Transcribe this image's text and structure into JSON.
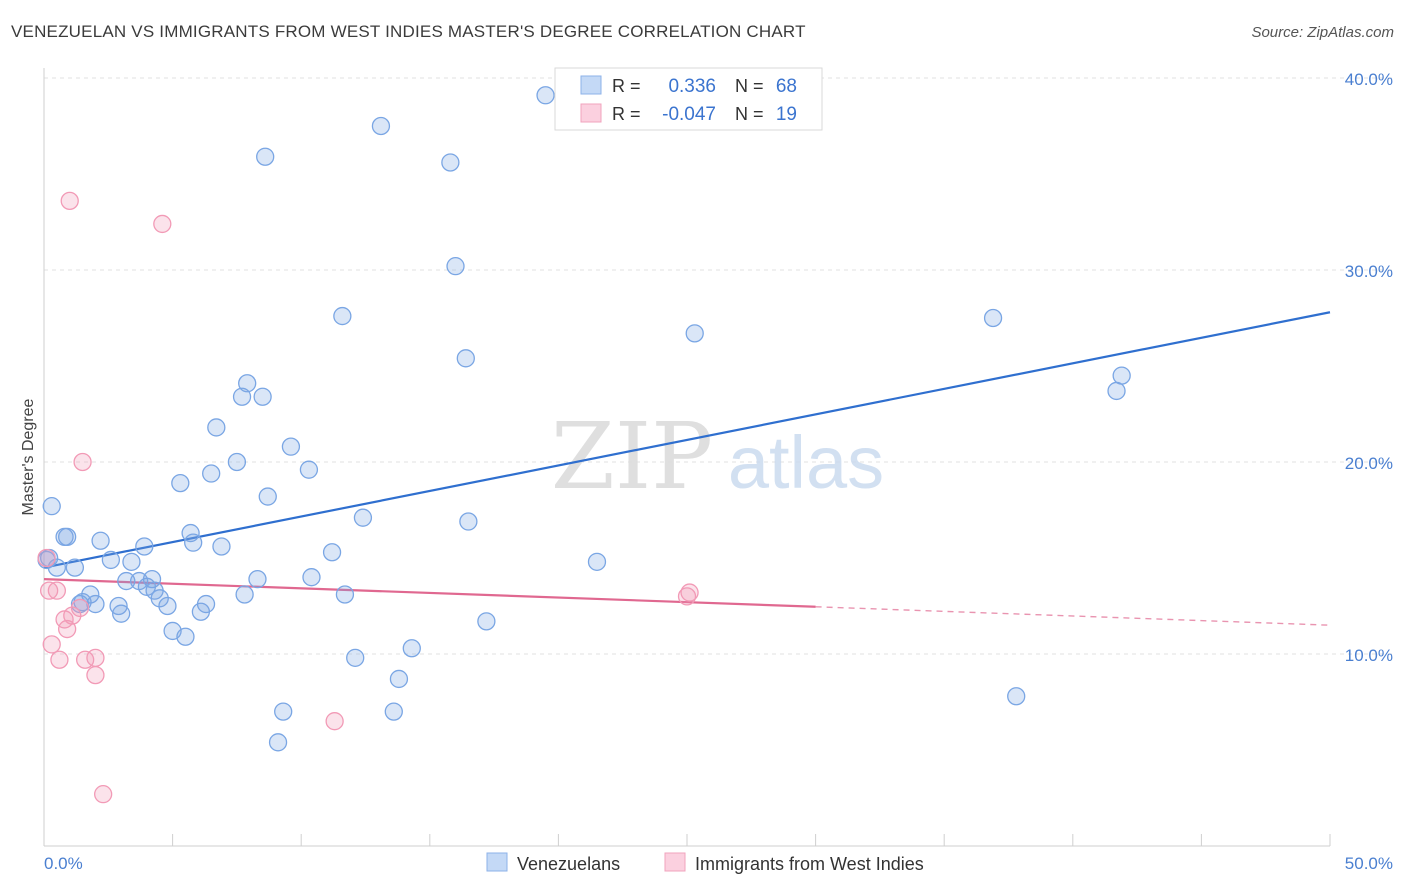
{
  "chart_data": {
    "type": "scatter",
    "title": "VENEZUELAN VS IMMIGRANTS FROM WEST INDIES MASTER'S DEGREE CORRELATION CHART",
    "source": "Source: ZipAtlas.com",
    "xlabel": "",
    "ylabel": "Master's Degree",
    "xlim": [
      0,
      50
    ],
    "ylim": [
      0,
      40
    ],
    "x_tick_labels": [
      "0.0%",
      "50.0%"
    ],
    "y_ticks": [
      10,
      20,
      30,
      40
    ],
    "y_tick_labels": [
      "10.0%",
      "20.0%",
      "30.0%",
      "40.0%"
    ],
    "grid": true,
    "watermark": "ZIPatlas",
    "legend_position": "top-center",
    "stats": [
      {
        "r_label": "R =",
        "r_value": "0.336",
        "n_label": "N =",
        "n_value": "68"
      },
      {
        "r_label": "R =",
        "r_value": "-0.047",
        "n_label": "N =",
        "n_value": "19"
      }
    ],
    "series": [
      {
        "name": "Venezuelans",
        "color": "#7aa6e4",
        "line_color": "#2f6fcf",
        "trend": {
          "x0": 0,
          "y0": 14.5,
          "x1": 50,
          "y1": 27.8,
          "solid_until": 50
        },
        "points": [
          [
            0.2,
            15.0
          ],
          [
            0.3,
            17.7
          ],
          [
            0.5,
            14.5
          ],
          [
            0.8,
            16.1
          ],
          [
            0.9,
            16.1
          ],
          [
            1.2,
            14.5
          ],
          [
            1.4,
            12.6
          ],
          [
            1.5,
            12.7
          ],
          [
            1.8,
            13.1
          ],
          [
            2.0,
            12.6
          ],
          [
            2.2,
            15.9
          ],
          [
            2.6,
            14.9
          ],
          [
            2.9,
            12.5
          ],
          [
            3.0,
            12.1
          ],
          [
            3.2,
            13.8
          ],
          [
            3.4,
            14.8
          ],
          [
            3.7,
            13.8
          ],
          [
            3.9,
            15.6
          ],
          [
            4.0,
            13.5
          ],
          [
            4.2,
            13.9
          ],
          [
            4.3,
            13.3
          ],
          [
            4.5,
            12.9
          ],
          [
            4.8,
            12.5
          ],
          [
            5.0,
            11.2
          ],
          [
            5.3,
            18.9
          ],
          [
            5.5,
            10.9
          ],
          [
            5.7,
            16.3
          ],
          [
            5.8,
            15.8
          ],
          [
            6.1,
            12.2
          ],
          [
            6.3,
            12.6
          ],
          [
            6.5,
            19.4
          ],
          [
            6.7,
            21.8
          ],
          [
            6.9,
            15.6
          ],
          [
            7.5,
            20.0
          ],
          [
            7.7,
            23.4
          ],
          [
            7.8,
            13.1
          ],
          [
            7.9,
            24.1
          ],
          [
            8.3,
            13.9
          ],
          [
            8.5,
            23.4
          ],
          [
            8.6,
            35.9
          ],
          [
            8.7,
            18.2
          ],
          [
            9.1,
            5.4
          ],
          [
            9.3,
            7.0
          ],
          [
            9.6,
            20.8
          ],
          [
            10.3,
            19.6
          ],
          [
            10.4,
            14.0
          ],
          [
            11.2,
            15.3
          ],
          [
            11.6,
            27.6
          ],
          [
            11.7,
            13.1
          ],
          [
            12.1,
            9.8
          ],
          [
            12.4,
            17.1
          ],
          [
            13.1,
            37.5
          ],
          [
            13.6,
            7.0
          ],
          [
            13.8,
            8.7
          ],
          [
            14.3,
            10.3
          ],
          [
            15.8,
            35.6
          ],
          [
            16.0,
            30.2
          ],
          [
            16.4,
            25.4
          ],
          [
            16.5,
            16.9
          ],
          [
            17.2,
            11.7
          ],
          [
            19.5,
            39.1
          ],
          [
            21.5,
            14.8
          ],
          [
            25.3,
            26.7
          ],
          [
            36.9,
            27.5
          ],
          [
            37.8,
            7.8
          ],
          [
            41.7,
            23.7
          ],
          [
            41.9,
            24.5
          ],
          [
            0.1,
            14.9
          ]
        ]
      },
      {
        "name": "Immigrants from West Indies",
        "color": "#f29ab6",
        "line_color": "#e06890",
        "trend": {
          "x0": 0,
          "y0": 13.9,
          "x1": 50,
          "y1": 11.5,
          "solid_until": 30
        },
        "points": [
          [
            0.1,
            15.0
          ],
          [
            0.2,
            13.3
          ],
          [
            0.3,
            10.5
          ],
          [
            0.5,
            13.3
          ],
          [
            0.6,
            9.7
          ],
          [
            0.8,
            11.8
          ],
          [
            0.9,
            11.3
          ],
          [
            1.0,
            33.6
          ],
          [
            1.1,
            12.0
          ],
          [
            1.4,
            12.4
          ],
          [
            1.5,
            20.0
          ],
          [
            1.6,
            9.7
          ],
          [
            2.0,
            9.8
          ],
          [
            2.0,
            8.9
          ],
          [
            2.3,
            2.7
          ],
          [
            4.6,
            32.4
          ],
          [
            11.3,
            6.5
          ],
          [
            25.0,
            13.0
          ],
          [
            25.1,
            13.2
          ]
        ]
      }
    ]
  }
}
